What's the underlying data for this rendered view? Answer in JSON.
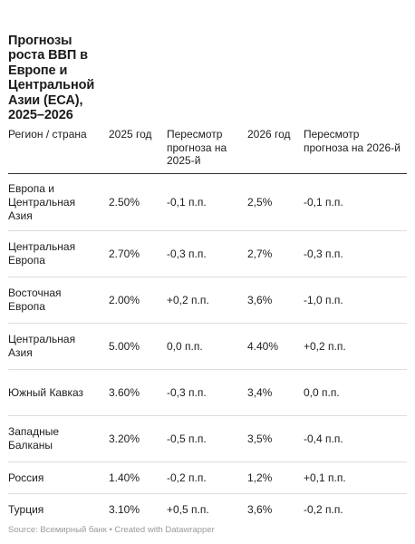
{
  "title": "Прогнозы роста ВВП в Европе и Центральной Азии (ЕСА), 2025–2026",
  "chart_data": {
    "type": "table",
    "columns": [
      "Регион / страна",
      "2025 год",
      "Пересмотр прогноза на 2025-й",
      "2026 год",
      "Пересмотр прогноза на 2026-й"
    ],
    "rows": [
      [
        "Европа и Центральная Азия",
        "2.50%",
        "-0,1 п.п.",
        "2,5%",
        "-0,1 п.п."
      ],
      [
        "Центральная Европа",
        "2.70%",
        "-0,3 п.п.",
        "2,7%",
        "-0,3 п.п."
      ],
      [
        "Восточная Европа",
        "2.00%",
        "+0,2 п.п.",
        "3,6%",
        "-1,0 п.п."
      ],
      [
        "Центральная Азия",
        "5.00%",
        "0,0 п.п.",
        "4.40%",
        "+0,2 п.п."
      ],
      [
        "Южный Кавказ",
        "3.60%",
        "-0,3 п.п.",
        "3,4%",
        "0,0 п.п."
      ],
      [
        "Западные Балканы",
        "3.20%",
        "-0,5 п.п.",
        "3,5%",
        "-0,4 п.п."
      ],
      [
        "Россия",
        "1.40%",
        "-0,2 п.п.",
        "1,2%",
        "+0,1 п.п."
      ],
      [
        "Турция",
        "3.10%",
        "+0,5 п.п.",
        "3,6%",
        "-0,2 п.п."
      ]
    ]
  },
  "footer": "Source: Всемирный банк  • Created with Datawrapper"
}
